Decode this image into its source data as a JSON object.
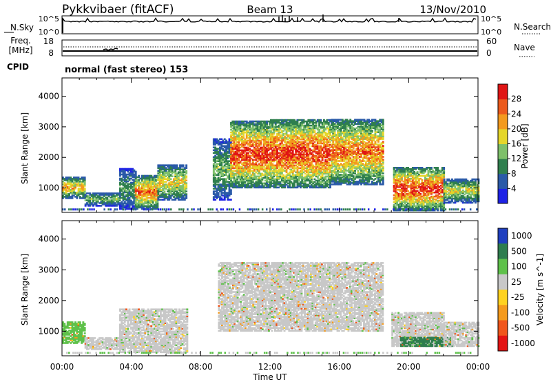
{
  "header": {
    "radar": "Pykkvibaer (fitACF)",
    "beam": "Beam 13",
    "date": "13/Nov/2010",
    "cpid_label": "CPID",
    "cpid_text": "normal (fast stereo) 153"
  },
  "noise_panel": {
    "left_label": "N.Sky",
    "right_label": "N.Search",
    "left_ticks": [
      "10^5",
      "10^0"
    ],
    "right_ticks": [
      "10^5",
      "10^0"
    ]
  },
  "freq_panel": {
    "left_label_1": "Freq.",
    "left_label_2": "[MHz]",
    "right_label": "Nave",
    "left_ticks": [
      "18",
      "8"
    ],
    "right_ticks": [
      "60",
      "0"
    ]
  },
  "x_axis": {
    "label": "Time UT",
    "ticks": [
      "00:00",
      "04:00",
      "08:00",
      "12:00",
      "16:00",
      "20:00",
      "00:00"
    ],
    "range_hours": [
      0,
      24
    ]
  },
  "chart_data": [
    {
      "type": "heatmap",
      "panel": "power",
      "ylabel": "Slant Range [km]",
      "yticks": [
        "1000",
        "2000",
        "3000",
        "4000"
      ],
      "ylim": [
        200,
        4600
      ],
      "colorbar_label": "Power [dB]",
      "colorbar_ticks": [
        "4",
        "8",
        "12",
        "16",
        "20",
        "24",
        "28"
      ],
      "colorbar_range": [
        0,
        32
      ],
      "colors": [
        "#1e22e6",
        "#2a5aa8",
        "#2f7f4e",
        "#7ec06a",
        "#e5d62a",
        "#f39a1e",
        "#ec5a1c",
        "#e01515"
      ],
      "regions": [
        {
          "t": [
            0.0,
            1.3
          ],
          "r": [
            650,
            1350
          ],
          "peak": 22
        },
        {
          "t": [
            1.3,
            3.3
          ],
          "r": [
            400,
            850
          ],
          "peak": 14
        },
        {
          "t": [
            3.3,
            4.2
          ],
          "r": [
            300,
            1650
          ],
          "peak": 12
        },
        {
          "t": [
            4.2,
            5.5
          ],
          "r": [
            300,
            1400
          ],
          "peak": 26
        },
        {
          "t": [
            5.5,
            7.2
          ],
          "r": [
            600,
            1750
          ],
          "peak": 20
        },
        {
          "t": [
            8.7,
            9.7
          ],
          "r": [
            600,
            2600
          ],
          "peak": 14
        },
        {
          "t": [
            9.7,
            12.0
          ],
          "r": [
            1000,
            3200
          ],
          "peak": 30
        },
        {
          "t": [
            12.0,
            15.5
          ],
          "r": [
            1000,
            3250
          ],
          "peak": 30
        },
        {
          "t": [
            15.5,
            18.5
          ],
          "r": [
            1100,
            3250
          ],
          "peak": 26
        },
        {
          "t": [
            19.1,
            22.0
          ],
          "r": [
            250,
            1650
          ],
          "peak": 30
        },
        {
          "t": [
            22.0,
            24.0
          ],
          "r": [
            500,
            1300
          ],
          "peak": 18
        }
      ]
    },
    {
      "type": "heatmap",
      "panel": "velocity",
      "ylabel": "Slant Range [km]",
      "yticks": [
        "1000",
        "2000",
        "3000",
        "4000"
      ],
      "ylim": [
        200,
        4600
      ],
      "colorbar_label": "Velocity [m s^-1]",
      "colorbar_ticks": [
        "1000",
        "500",
        "100",
        "25",
        "-25",
        "-100",
        "-500",
        "-1000"
      ],
      "colors": [
        "#1f3fbf",
        "#2e7d4e",
        "#5ec14a",
        "#c8c8c8",
        "#ffd21f",
        "#f59a1c",
        "#f0561c",
        "#e41414"
      ],
      "regions": [
        {
          "t": [
            0.0,
            1.3
          ],
          "r": [
            600,
            1300
          ],
          "class": "green"
        },
        {
          "t": [
            1.3,
            3.3
          ],
          "r": [
            400,
            800
          ],
          "class": "grey"
        },
        {
          "t": [
            3.3,
            7.2
          ],
          "r": [
            300,
            1700
          ],
          "class": "grey"
        },
        {
          "t": [
            9.0,
            18.5
          ],
          "r": [
            1000,
            3250
          ],
          "class": "grey"
        },
        {
          "t": [
            19.0,
            22.0
          ],
          "r": [
            500,
            1600
          ],
          "class": "grey"
        },
        {
          "t": [
            19.5,
            22.5
          ],
          "r": [
            500,
            800
          ],
          "class": "darkgreen"
        },
        {
          "t": [
            22.0,
            24.0
          ],
          "r": [
            500,
            1300
          ],
          "class": "grey"
        }
      ]
    }
  ]
}
